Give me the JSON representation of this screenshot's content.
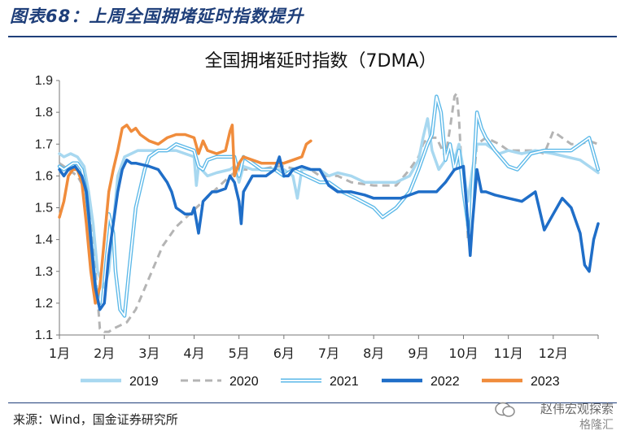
{
  "figure_title": "图表68：上周全国拥堵延时指数提升",
  "source_text": "来源：Wind，国金证券研究所",
  "watermark": {
    "top": "赵伟宏观探索",
    "bottom": "格隆汇"
  },
  "colors": {
    "2019": "#a8d8f0",
    "2020": "#b4b4b4",
    "2021": "#5bb8e8",
    "2022": "#1f6ec8",
    "2023": "#f08c3c",
    "title_blue": "#1f3f7a"
  },
  "chart_data": {
    "type": "line",
    "title": "全国拥堵延时指数（7DMA）",
    "xlabel": "",
    "ylabel": "",
    "x_unit": "month (1 = Jan 1)",
    "xlim": [
      1,
      13
    ],
    "ylim": [
      1.1,
      1.9
    ],
    "yticks": [
      "1.1",
      "1.2",
      "1.3",
      "1.4",
      "1.5",
      "1.6",
      "1.7",
      "1.8",
      "1.9"
    ],
    "xticks": [
      "1月",
      "2月",
      "3月",
      "4月",
      "5月",
      "6月",
      "7月",
      "8月",
      "9月",
      "10月",
      "11月",
      "12月"
    ],
    "grid": false,
    "legend": "bottom",
    "series": [
      {
        "name": "2019",
        "style": "solid-thick-light",
        "x": [
          1.0,
          1.1,
          1.25,
          1.4,
          1.55,
          1.65,
          1.75,
          1.85,
          2.0,
          2.1,
          2.2,
          2.3,
          2.45,
          2.6,
          2.75,
          2.9,
          3.0,
          3.2,
          3.4,
          3.6,
          3.8,
          4.0,
          4.05,
          4.1,
          4.3,
          4.5,
          4.8,
          4.9,
          5.0,
          5.1,
          5.3,
          5.5,
          5.8,
          6.0,
          6.2,
          6.3,
          6.4,
          6.6,
          6.8,
          7.0,
          7.2,
          7.5,
          7.8,
          8.0,
          8.2,
          8.5,
          8.8,
          9.0,
          9.1,
          9.2,
          9.3,
          9.45,
          9.6,
          9.7,
          9.8,
          9.9,
          10.0,
          10.1,
          10.2,
          10.3,
          10.5,
          10.8,
          11.0,
          11.3,
          11.6,
          12.0,
          12.3,
          12.6,
          12.9,
          13.0
        ],
        "y": [
          1.67,
          1.66,
          1.67,
          1.66,
          1.63,
          1.55,
          1.45,
          1.3,
          1.25,
          1.3,
          1.45,
          1.6,
          1.66,
          1.67,
          1.68,
          1.68,
          1.68,
          1.68,
          1.68,
          1.68,
          1.67,
          1.66,
          1.57,
          1.63,
          1.6,
          1.61,
          1.62,
          1.63,
          1.58,
          1.63,
          1.62,
          1.62,
          1.62,
          1.62,
          1.6,
          1.53,
          1.62,
          1.62,
          1.62,
          1.6,
          1.61,
          1.6,
          1.58,
          1.58,
          1.58,
          1.58,
          1.6,
          1.65,
          1.72,
          1.78,
          1.68,
          1.62,
          1.65,
          1.7,
          1.65,
          1.7,
          1.62,
          1.52,
          1.62,
          1.7,
          1.7,
          1.67,
          1.68,
          1.67,
          1.68,
          1.67,
          1.66,
          1.65,
          1.62,
          1.61
        ]
      },
      {
        "name": "2020",
        "style": "dashed",
        "x": [
          1.0,
          1.2,
          1.4,
          1.6,
          1.75,
          1.9,
          2.0,
          2.1,
          2.2,
          2.35,
          2.5,
          2.7,
          3.0,
          3.3,
          3.6,
          3.9,
          4.2,
          4.5,
          4.8,
          5.0,
          5.2,
          5.5,
          5.8,
          6.0,
          6.3,
          6.6,
          6.8,
          7.0,
          7.2,
          7.5,
          8.0,
          8.5,
          8.8,
          9.0,
          9.1,
          9.2,
          9.4,
          9.6,
          9.7,
          9.8,
          9.85,
          9.9,
          9.95,
          10.05,
          10.1,
          10.15,
          10.2,
          10.3,
          10.5,
          10.8,
          11.0,
          11.3,
          11.6,
          11.8,
          12.0,
          12.4,
          12.6,
          12.8,
          13.0
        ],
        "y": [
          1.64,
          1.62,
          1.6,
          1.55,
          1.4,
          1.12,
          1.11,
          1.11,
          1.12,
          1.13,
          1.14,
          1.18,
          1.28,
          1.38,
          1.44,
          1.48,
          1.52,
          1.56,
          1.6,
          1.62,
          1.62,
          1.62,
          1.63,
          1.63,
          1.62,
          1.62,
          1.6,
          1.6,
          1.6,
          1.58,
          1.57,
          1.57,
          1.62,
          1.66,
          1.7,
          1.72,
          1.72,
          1.66,
          1.75,
          1.85,
          1.86,
          1.78,
          1.65,
          1.55,
          1.4,
          1.38,
          1.55,
          1.7,
          1.72,
          1.7,
          1.68,
          1.68,
          1.68,
          1.67,
          1.74,
          1.7,
          1.7,
          1.71,
          1.7
        ]
      },
      {
        "name": "2021",
        "style": "double-outline",
        "x": [
          1.0,
          1.1,
          1.2,
          1.3,
          1.4,
          1.5,
          1.6,
          1.7,
          1.8,
          1.9,
          2.0,
          2.1,
          2.2,
          2.25,
          2.35,
          2.45,
          2.55,
          2.7,
          2.9,
          3.0,
          3.2,
          3.4,
          3.6,
          3.8,
          4.0,
          4.1,
          4.2,
          4.3,
          4.5,
          4.7,
          4.9,
          5.0,
          5.1,
          5.3,
          5.5,
          5.8,
          6.0,
          6.2,
          6.5,
          6.8,
          7.0,
          7.3,
          7.6,
          8.0,
          8.2,
          8.5,
          8.8,
          9.0,
          9.2,
          9.3,
          9.4,
          9.5,
          9.6,
          9.7,
          9.8,
          9.9,
          10.0,
          10.1,
          10.15,
          10.2,
          10.3,
          10.4,
          10.5,
          10.7,
          11.0,
          11.2,
          11.5,
          11.8,
          12.0,
          12.4,
          12.6,
          12.8,
          13.0
        ],
        "y": [
          1.63,
          1.62,
          1.63,
          1.64,
          1.64,
          1.62,
          1.55,
          1.4,
          1.25,
          1.2,
          1.35,
          1.48,
          1.42,
          1.3,
          1.18,
          1.16,
          1.3,
          1.5,
          1.62,
          1.66,
          1.68,
          1.68,
          1.7,
          1.69,
          1.68,
          1.63,
          1.62,
          1.65,
          1.66,
          1.66,
          1.66,
          1.6,
          1.66,
          1.64,
          1.62,
          1.62,
          1.6,
          1.62,
          1.6,
          1.58,
          1.58,
          1.55,
          1.53,
          1.5,
          1.47,
          1.5,
          1.55,
          1.62,
          1.7,
          1.73,
          1.85,
          1.8,
          1.65,
          1.7,
          1.62,
          1.68,
          1.55,
          1.45,
          1.38,
          1.55,
          1.8,
          1.75,
          1.72,
          1.68,
          1.63,
          1.62,
          1.67,
          1.68,
          1.68,
          1.68,
          1.7,
          1.72,
          1.62
        ]
      },
      {
        "name": "2022",
        "style": "solid-thick",
        "x": [
          1.0,
          1.1,
          1.2,
          1.35,
          1.5,
          1.6,
          1.65,
          1.7,
          1.8,
          1.9,
          2.0,
          2.1,
          2.2,
          2.3,
          2.4,
          2.5,
          2.6,
          2.7,
          3.0,
          3.2,
          3.4,
          3.5,
          3.6,
          3.8,
          3.95,
          4.0,
          4.05,
          4.1,
          4.2,
          4.4,
          4.5,
          4.7,
          4.8,
          4.9,
          5.0,
          5.05,
          5.1,
          5.3,
          5.5,
          5.6,
          5.8,
          5.9,
          6.0,
          6.1,
          6.2,
          6.4,
          6.6,
          6.8,
          7.0,
          7.2,
          7.5,
          7.8,
          8.0,
          8.3,
          8.6,
          9.0,
          9.2,
          9.4,
          9.6,
          9.8,
          10.0,
          10.1,
          10.15,
          10.2,
          10.3,
          10.4,
          10.5,
          10.7,
          11.0,
          11.3,
          11.6,
          11.8,
          12.0,
          12.2,
          12.4,
          12.6,
          12.7,
          12.8,
          12.9,
          13.0
        ],
        "y": [
          1.62,
          1.6,
          1.62,
          1.63,
          1.6,
          1.55,
          1.48,
          1.4,
          1.25,
          1.18,
          1.2,
          1.35,
          1.45,
          1.55,
          1.62,
          1.65,
          1.64,
          1.64,
          1.63,
          1.62,
          1.58,
          1.55,
          1.5,
          1.48,
          1.48,
          1.5,
          1.46,
          1.42,
          1.52,
          1.55,
          1.55,
          1.56,
          1.6,
          1.58,
          1.52,
          1.45,
          1.55,
          1.6,
          1.6,
          1.6,
          1.62,
          1.66,
          1.6,
          1.6,
          1.62,
          1.63,
          1.62,
          1.62,
          1.57,
          1.55,
          1.55,
          1.54,
          1.53,
          1.53,
          1.53,
          1.55,
          1.55,
          1.55,
          1.58,
          1.62,
          1.63,
          1.45,
          1.35,
          1.45,
          1.62,
          1.55,
          1.55,
          1.54,
          1.53,
          1.52,
          1.55,
          1.43,
          1.48,
          1.53,
          1.5,
          1.42,
          1.32,
          1.3,
          1.4,
          1.45
        ]
      },
      {
        "name": "2023",
        "style": "solid-thick",
        "x": [
          1.0,
          1.1,
          1.2,
          1.3,
          1.4,
          1.5,
          1.6,
          1.7,
          1.8,
          1.9,
          2.0,
          2.1,
          2.2,
          2.3,
          2.4,
          2.5,
          2.6,
          2.7,
          2.8,
          3.0,
          3.2,
          3.4,
          3.6,
          3.8,
          4.0,
          4.1,
          4.2,
          4.3,
          4.5,
          4.7,
          4.8,
          4.85,
          4.9,
          5.0,
          5.1,
          5.3,
          5.5,
          5.8,
          6.0,
          6.2,
          6.4,
          6.5,
          6.6
        ],
        "y": [
          1.47,
          1.52,
          1.6,
          1.62,
          1.62,
          1.58,
          1.45,
          1.3,
          1.2,
          1.25,
          1.4,
          1.55,
          1.62,
          1.68,
          1.75,
          1.76,
          1.74,
          1.75,
          1.73,
          1.71,
          1.7,
          1.72,
          1.73,
          1.73,
          1.72,
          1.67,
          1.71,
          1.68,
          1.67,
          1.68,
          1.74,
          1.76,
          1.6,
          1.64,
          1.66,
          1.65,
          1.64,
          1.64,
          1.64,
          1.65,
          1.66,
          1.7,
          1.71
        ]
      }
    ]
  }
}
